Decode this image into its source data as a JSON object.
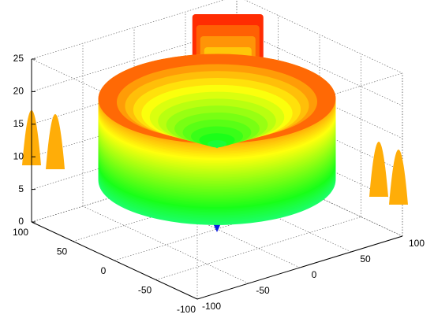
{
  "chart_data": {
    "type": "surface",
    "xlim": [
      -100,
      100
    ],
    "ylim": [
      -100,
      100
    ],
    "zlim": [
      0,
      25
    ],
    "xticks": [
      -100,
      -50,
      0,
      50,
      100
    ],
    "yticks": [
      -100,
      -50,
      0,
      50,
      100
    ],
    "zticks": [
      0,
      5,
      10,
      15,
      20,
      25
    ],
    "grid": true
  }
}
